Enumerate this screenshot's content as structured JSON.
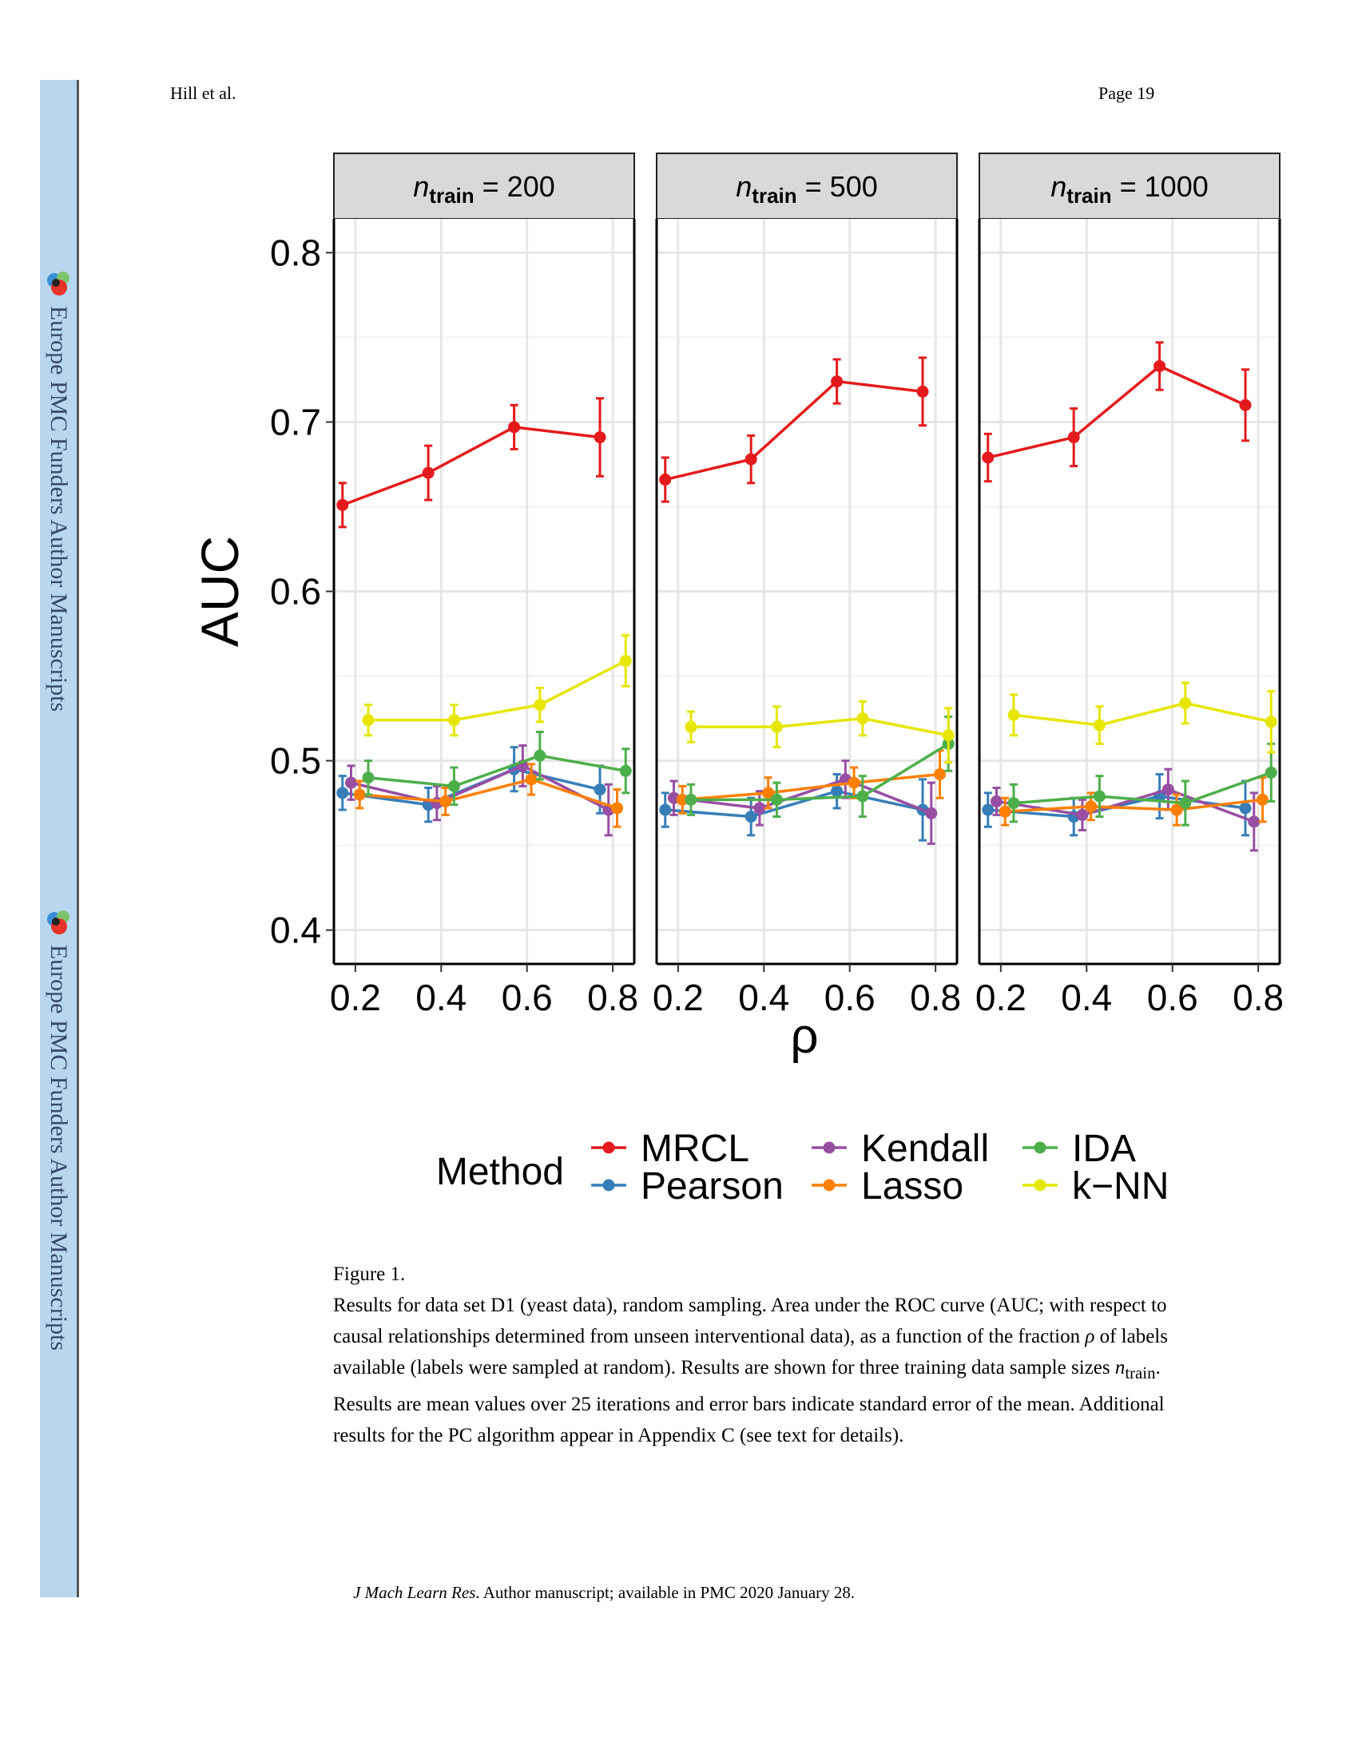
{
  "header": {
    "author": "Hill et al.",
    "page": "Page 19"
  },
  "sidebar": {
    "label": "Europe PMC Funders Author Manuscripts",
    "logo_icon": "europe-pmc-logo-icon"
  },
  "chart_data": {
    "type": "line",
    "ylabel": "AUC",
    "xlabel": "ρ",
    "ylim": [
      0.38,
      0.82
    ],
    "xlim": [
      0.15,
      0.85
    ],
    "yticks": [
      "0.4",
      "0.5",
      "0.6",
      "0.7",
      "0.8"
    ],
    "xticks": [
      "0.2",
      "0.4",
      "0.6",
      "0.8"
    ],
    "grid": true,
    "legend_title": "Method",
    "legend_placement": "bottom",
    "panels": [
      {
        "label_var": "n",
        "label_sub": "train",
        "label_eq": " = 200"
      },
      {
        "label_var": "n",
        "label_sub": "train",
        "label_eq": " = 500"
      },
      {
        "label_var": "n",
        "label_sub": "train",
        "label_eq": " = 1000"
      }
    ],
    "x": [
      0.2,
      0.4,
      0.6,
      0.8
    ],
    "series": [
      {
        "name": "MRCL",
        "color": "#e41a1c",
        "offset": -0.03,
        "values": [
          [
            0.651,
            0.67,
            0.697,
            0.691
          ],
          [
            0.666,
            0.678,
            0.724,
            0.718
          ],
          [
            0.679,
            0.691,
            0.733,
            0.71
          ]
        ],
        "errors": [
          [
            0.013,
            0.016,
            0.013,
            0.023
          ],
          [
            0.013,
            0.014,
            0.013,
            0.02
          ],
          [
            0.014,
            0.017,
            0.014,
            0.021
          ]
        ]
      },
      {
        "name": "Pearson",
        "color": "#377eb8",
        "offset": -0.03,
        "values": [
          [
            0.481,
            0.474,
            0.495,
            0.483
          ],
          [
            0.471,
            0.467,
            0.482,
            0.471
          ],
          [
            0.471,
            0.467,
            0.479,
            0.472
          ]
        ],
        "errors": [
          [
            0.01,
            0.01,
            0.013,
            0.014
          ],
          [
            0.01,
            0.011,
            0.01,
            0.018
          ],
          [
            0.01,
            0.011,
            0.013,
            0.016
          ]
        ]
      },
      {
        "name": "Kendall",
        "color": "#984ea3",
        "offset": -0.01,
        "values": [
          [
            0.487,
            0.475,
            0.497,
            0.471
          ],
          [
            0.478,
            0.472,
            0.489,
            0.469
          ],
          [
            0.476,
            0.468,
            0.483,
            0.464
          ]
        ],
        "errors": [
          [
            0.01,
            0.01,
            0.012,
            0.015
          ],
          [
            0.01,
            0.01,
            0.011,
            0.018
          ],
          [
            0.008,
            0.009,
            0.012,
            0.017
          ]
        ]
      },
      {
        "name": "Lasso",
        "color": "#ff7f00",
        "offset": 0.01,
        "values": [
          [
            0.48,
            0.476,
            0.489,
            0.472
          ],
          [
            0.477,
            0.481,
            0.487,
            0.492
          ],
          [
            0.47,
            0.473,
            0.471,
            0.477
          ]
        ],
        "errors": [
          [
            0.008,
            0.008,
            0.009,
            0.011
          ],
          [
            0.008,
            0.009,
            0.009,
            0.014
          ],
          [
            0.008,
            0.008,
            0.009,
            0.013
          ]
        ]
      },
      {
        "name": "IDA",
        "color": "#4daf4a",
        "offset": 0.03,
        "values": [
          [
            0.49,
            0.485,
            0.503,
            0.494
          ],
          [
            0.477,
            0.477,
            0.479,
            0.51
          ],
          [
            0.475,
            0.479,
            0.475,
            0.493
          ]
        ],
        "errors": [
          [
            0.01,
            0.011,
            0.014,
            0.013
          ],
          [
            0.009,
            0.01,
            0.012,
            0.016
          ],
          [
            0.011,
            0.012,
            0.013,
            0.017
          ]
        ]
      },
      {
        "name": "k−NN",
        "color": "#e6e600",
        "offset": 0.03,
        "values": [
          [
            0.524,
            0.524,
            0.533,
            0.559
          ],
          [
            0.52,
            0.52,
            0.525,
            0.515
          ],
          [
            0.527,
            0.521,
            0.534,
            0.523
          ]
        ],
        "errors": [
          [
            0.009,
            0.009,
            0.01,
            0.015
          ],
          [
            0.009,
            0.012,
            0.01,
            0.016
          ],
          [
            0.012,
            0.011,
            0.012,
            0.018
          ]
        ]
      }
    ],
    "legend_order": [
      "MRCL",
      "Kendall",
      "IDA",
      "Pearson",
      "Lasso",
      "k−NN"
    ]
  },
  "caption": {
    "figure_label": "Figure 1.",
    "text_before": "Results for data set D1 (yeast data), random sampling. Area under the ROC curve (AUC; with respect to causal relationships determined from unseen interventional data), as a function of the fraction ",
    "rho_symbol": "ρ",
    "text_middle": " of labels available (labels were sampled at random). Results are shown for three training data sample sizes ",
    "n_symbol": "n",
    "n_sub": "train",
    "text_after": ". Results are mean values over 25 iterations and error bars indicate standard error of the mean. Additional results for the PC algorithm appear in Appendix C (see text for details)."
  },
  "footer": {
    "journal": "J Mach Learn Res",
    "rest": ". Author manuscript; available in PMC 2020 January 28."
  }
}
